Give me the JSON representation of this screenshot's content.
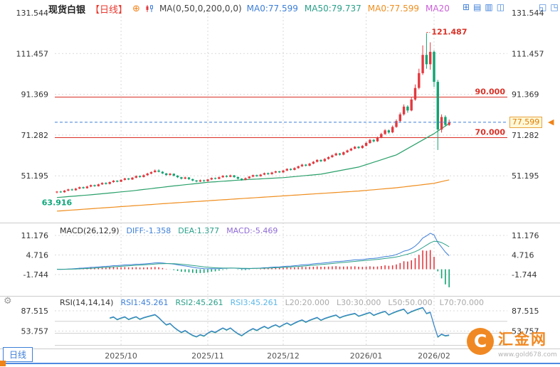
{
  "colors": {
    "up": "#e2393f",
    "down": "#12a372",
    "ma_green": "#2aa06a",
    "ma_orange": "#ef8e1f",
    "grid": "#d9d9d9",
    "separator": "#cccccc",
    "axis_text": "#333333",
    "hline_red": "#d93026",
    "price_line": "#3d7fd8",
    "price_tag_bg": "#fff8d9",
    "price_tag_border": "#e8a33d",
    "price_tag_text": "#e07b00",
    "annotation_high": "#d93026",
    "annotation_low": "#0fa87a",
    "toolbar_blue": "#3d7fd8",
    "period_red": "#e8392f",
    "brand_orange": "#f08318",
    "bottom_border": "#4f8ae0",
    "macd_hist_up": "#e2393f",
    "macd_hist_down": "#12a372",
    "diff_line": "#3d7fd8",
    "dea_line": "#2aa089",
    "rsi_line1": "#3d7fd8",
    "rsi_line2": "#2aa089"
  },
  "icons": {
    "zoom_add": "⊕",
    "settings": "⚙",
    "price_arrow": "◀",
    "window_icons": [
      {
        "name": "add-window-icon",
        "glyph": "⊞"
      },
      {
        "name": "rows-layout-icon",
        "glyph": "▤"
      },
      {
        "name": "columns-layout-icon",
        "glyph": "▥"
      },
      {
        "name": "split-layout-icon",
        "glyph": "◫"
      }
    ],
    "corner_icons": [
      {
        "name": "restore-window-icon",
        "glyph": "◱"
      },
      {
        "name": "maximize-window-icon",
        "glyph": "◳"
      }
    ]
  },
  "toolbar": {
    "symbol": "现货白银",
    "period": "【日线】",
    "ma_label": "MA(0,50,0,200,0,0)",
    "ma_values": [
      {
        "text": "MA0:77.599",
        "color": "#3d7fd8"
      },
      {
        "text": "MA50:79.737",
        "color": "#2aa089"
      },
      {
        "text": "MA0:77.599",
        "color": "#ef8e1f"
      },
      {
        "text": "MA20",
        "color": "#c95fd6"
      }
    ]
  },
  "indicators": {
    "macd": {
      "label": "MACD(26,12,9)",
      "values": [
        {
          "text": "DIFF:-1.358",
          "color": "#3d7fd8"
        },
        {
          "text": "DEA:1.377",
          "color": "#2aa089"
        },
        {
          "text": "MACD:-5.469",
          "color": "#8f6bd6"
        }
      ]
    },
    "rsi": {
      "label": "RSI(14,14,14)",
      "values": [
        {
          "text": "RSI1:45.261",
          "color": "#3d7fd8"
        },
        {
          "text": "RSI2:45.261",
          "color": "#2aa089"
        },
        {
          "text": "RSI3:45.261",
          "color": "#5bb7e8"
        },
        {
          "text": "L20:20.000",
          "color": "#aaaaaa"
        },
        {
          "text": "L30:30.000",
          "color": "#aaaaaa"
        },
        {
          "text": "L50:50.000",
          "color": "#aaaaaa"
        },
        {
          "text": "L70:70.000",
          "color": "#aaaaaa"
        }
      ]
    }
  },
  "bottom": {
    "tab": "日线"
  },
  "watermark": {
    "logo_glyph": "C",
    "name": "汇金网",
    "url": "www.gold678.com"
  },
  "chart_data": {
    "type": "candlestick",
    "title": "现货白银 日线",
    "main": {
      "y_ticks": [
        131.544,
        111.457,
        91.369,
        71.282,
        51.195
      ],
      "hlines": [
        {
          "value": 90.0,
          "label": "90.000"
        },
        {
          "value": 70.0,
          "label": "70.000"
        }
      ],
      "current_price": 77.599,
      "current_price_label": "77.599",
      "high_annotation": {
        "value": 121.487,
        "label": "121.487"
      },
      "low_annotation": {
        "value": 63.916,
        "label": "63.916"
      },
      "month_marks": [
        {
          "index": 17,
          "label": "2025/10"
        },
        {
          "index": 40,
          "label": "2025/11"
        },
        {
          "index": 60,
          "label": "2025/12"
        },
        {
          "index": 82,
          "label": "2026/01"
        },
        {
          "index": 100,
          "label": "2026/02"
        }
      ],
      "ma_green_points": {
        "indices": [
          0,
          10,
          20,
          30,
          40,
          50,
          60,
          70,
          80,
          90,
          100,
          104
        ],
        "values": [
          40.5,
          42.0,
          43.8,
          46.0,
          48.0,
          49.3,
          50.3,
          52.0,
          55.5,
          61.5,
          72.0,
          77.0
        ]
      },
      "ma_orange_points": {
        "indices": [
          0,
          10,
          20,
          30,
          40,
          50,
          60,
          70,
          80,
          90,
          100,
          104
        ],
        "values": [
          33.8,
          35.1,
          36.4,
          37.7,
          38.9,
          40.1,
          41.3,
          42.5,
          43.7,
          45.3,
          47.5,
          49.2
        ]
      },
      "columns": [
        "date",
        "open",
        "high",
        "low",
        "close"
      ],
      "candles": [
        [
          "2025-09-08",
          43.0,
          43.7,
          42.6,
          43.4
        ],
        [
          "2025-09-09",
          43.4,
          43.8,
          42.8,
          43.1
        ],
        [
          "2025-09-10",
          43.1,
          44.2,
          42.9,
          43.9
        ],
        [
          "2025-09-11",
          43.9,
          44.8,
          43.6,
          44.5
        ],
        [
          "2025-09-12",
          44.5,
          44.9,
          43.8,
          44.1
        ],
        [
          "2025-09-15",
          44.1,
          45.2,
          43.9,
          44.9
        ],
        [
          "2025-09-16",
          44.9,
          45.9,
          44.6,
          45.6
        ],
        [
          "2025-09-17",
          45.6,
          45.9,
          44.8,
          45.1
        ],
        [
          "2025-09-18",
          45.1,
          46.3,
          44.9,
          45.9
        ],
        [
          "2025-09-19",
          45.9,
          46.9,
          45.6,
          46.6
        ],
        [
          "2025-09-22",
          46.6,
          46.9,
          45.8,
          46.1
        ],
        [
          "2025-09-23",
          46.1,
          47.3,
          45.9,
          47.0
        ],
        [
          "2025-09-24",
          47.0,
          48.0,
          46.7,
          47.7
        ],
        [
          "2025-09-25",
          47.7,
          48.0,
          46.9,
          47.2
        ],
        [
          "2025-09-26",
          47.2,
          48.4,
          47.0,
          48.1
        ],
        [
          "2025-09-29",
          48.1,
          49.1,
          47.8,
          48.8
        ],
        [
          "2025-09-30",
          48.8,
          49.0,
          48.0,
          48.3
        ],
        [
          "2025-10-01",
          48.3,
          49.5,
          48.1,
          49.2
        ],
        [
          "2025-10-02",
          49.2,
          50.2,
          48.9,
          49.9
        ],
        [
          "2025-10-03",
          49.9,
          50.1,
          49.1,
          49.4
        ],
        [
          "2025-10-06",
          49.4,
          50.6,
          49.2,
          50.3
        ],
        [
          "2025-10-07",
          50.3,
          51.4,
          50.0,
          51.1
        ],
        [
          "2025-10-08",
          51.1,
          51.4,
          50.3,
          50.6
        ],
        [
          "2025-10-09",
          50.6,
          51.9,
          50.4,
          51.5
        ],
        [
          "2025-10-10",
          51.5,
          52.7,
          51.2,
          52.3
        ],
        [
          "2025-10-13",
          52.3,
          53.4,
          52.0,
          53.0
        ],
        [
          "2025-10-14",
          53.0,
          54.3,
          52.8,
          53.8
        ],
        [
          "2025-10-15",
          53.8,
          54.4,
          52.9,
          53.2
        ],
        [
          "2025-10-16",
          53.2,
          53.5,
          52.1,
          52.4
        ],
        [
          "2025-10-17",
          52.4,
          52.6,
          51.2,
          51.6
        ],
        [
          "2025-10-20",
          51.6,
          52.6,
          51.3,
          52.2
        ],
        [
          "2025-10-21",
          52.2,
          52.4,
          50.9,
          51.3
        ],
        [
          "2025-10-22",
          51.3,
          51.5,
          50.1,
          50.5
        ],
        [
          "2025-10-23",
          50.5,
          50.7,
          49.4,
          49.8
        ],
        [
          "2025-10-24",
          49.8,
          50.8,
          49.5,
          50.4
        ],
        [
          "2025-10-27",
          50.4,
          50.6,
          49.2,
          49.6
        ],
        [
          "2025-10-28",
          49.6,
          49.8,
          48.5,
          48.9
        ],
        [
          "2025-10-29",
          48.9,
          49.1,
          48.0,
          48.4
        ],
        [
          "2025-10-30",
          48.4,
          49.4,
          48.1,
          49.0
        ],
        [
          "2025-10-31",
          49.0,
          49.3,
          48.2,
          48.6
        ],
        [
          "2025-11-03",
          48.6,
          49.7,
          48.3,
          49.4
        ],
        [
          "2025-11-04",
          49.4,
          50.4,
          49.1,
          50.1
        ],
        [
          "2025-11-05",
          50.1,
          50.4,
          49.4,
          49.7
        ],
        [
          "2025-11-06",
          49.7,
          50.8,
          49.5,
          50.5
        ],
        [
          "2025-11-07",
          50.5,
          51.5,
          50.2,
          51.2
        ],
        [
          "2025-11-10",
          51.2,
          51.5,
          50.4,
          50.7
        ],
        [
          "2025-11-11",
          50.7,
          51.8,
          50.5,
          51.4
        ],
        [
          "2025-11-12",
          51.4,
          51.6,
          50.2,
          50.6
        ],
        [
          "2025-11-13",
          50.6,
          50.8,
          49.4,
          49.8
        ],
        [
          "2025-11-14",
          49.8,
          50.0,
          48.8,
          49.2
        ],
        [
          "2025-11-17",
          49.2,
          50.4,
          49.0,
          50.0
        ],
        [
          "2025-11-18",
          50.0,
          51.1,
          49.8,
          50.8
        ],
        [
          "2025-11-19",
          50.8,
          51.8,
          50.5,
          51.5
        ],
        [
          "2025-11-20",
          51.5,
          51.8,
          50.7,
          51.0
        ],
        [
          "2025-11-21",
          51.0,
          52.1,
          50.8,
          51.8
        ],
        [
          "2025-11-24",
          51.8,
          52.8,
          51.5,
          52.5
        ],
        [
          "2025-11-25",
          52.5,
          52.8,
          51.7,
          52.0
        ],
        [
          "2025-11-26",
          52.0,
          53.2,
          51.8,
          52.8
        ],
        [
          "2025-11-27",
          52.8,
          53.7,
          52.5,
          53.4
        ],
        [
          "2025-11-28",
          53.4,
          53.6,
          52.6,
          52.9
        ],
        [
          "2025-12-01",
          52.9,
          54.1,
          52.7,
          53.8
        ],
        [
          "2025-12-02",
          53.8,
          54.9,
          53.5,
          54.6
        ],
        [
          "2025-12-03",
          54.6,
          54.9,
          53.8,
          54.1
        ],
        [
          "2025-12-04",
          54.1,
          55.4,
          53.9,
          55.0
        ],
        [
          "2025-12-05",
          55.0,
          56.2,
          54.7,
          55.9
        ],
        [
          "2025-12-08",
          55.9,
          57.1,
          55.6,
          56.7
        ],
        [
          "2025-12-09",
          56.7,
          57.0,
          55.8,
          56.2
        ],
        [
          "2025-12-10",
          56.2,
          57.6,
          55.9,
          57.2
        ],
        [
          "2025-12-11",
          57.2,
          58.5,
          56.9,
          58.1
        ],
        [
          "2025-12-12",
          58.1,
          59.4,
          57.8,
          59.0
        ],
        [
          "2025-12-15",
          59.0,
          59.3,
          58.0,
          58.4
        ],
        [
          "2025-12-16",
          58.4,
          59.9,
          58.1,
          59.5
        ],
        [
          "2025-12-17",
          59.5,
          60.8,
          59.2,
          60.4
        ],
        [
          "2025-12-18",
          60.4,
          61.7,
          60.1,
          61.3
        ],
        [
          "2025-12-19",
          61.3,
          62.6,
          61.0,
          62.2
        ],
        [
          "2025-12-22",
          62.2,
          62.5,
          61.2,
          61.6
        ],
        [
          "2025-12-23",
          61.6,
          63.2,
          61.3,
          62.8
        ],
        [
          "2025-12-24",
          62.8,
          64.1,
          62.5,
          63.7
        ],
        [
          "2025-12-26",
          63.7,
          65.0,
          63.4,
          64.6
        ],
        [
          "2025-12-29",
          64.6,
          65.9,
          64.3,
          65.5
        ],
        [
          "2025-12-30",
          65.5,
          65.8,
          64.5,
          64.9
        ],
        [
          "2025-12-31",
          64.9,
          66.4,
          64.6,
          66.0
        ],
        [
          "2026-01-02",
          66.0,
          67.9,
          65.7,
          67.4
        ],
        [
          "2026-01-05",
          67.4,
          69.4,
          67.0,
          68.9
        ],
        [
          "2026-01-06",
          68.9,
          69.3,
          67.7,
          68.2
        ],
        [
          "2026-01-07",
          68.2,
          70.5,
          67.9,
          70.0
        ],
        [
          "2026-01-08",
          70.0,
          72.4,
          69.7,
          71.8
        ],
        [
          "2026-01-09",
          71.8,
          74.2,
          71.4,
          73.6
        ],
        [
          "2026-01-12",
          73.6,
          74.0,
          72.0,
          72.6
        ],
        [
          "2026-01-13",
          72.6,
          76.0,
          72.2,
          75.3
        ],
        [
          "2026-01-14",
          75.3,
          79.0,
          74.9,
          78.2
        ],
        [
          "2026-01-15",
          78.2,
          82.4,
          77.8,
          81.5
        ],
        [
          "2026-01-16",
          81.5,
          86.4,
          80.9,
          85.3
        ],
        [
          "2026-01-19",
          85.3,
          86.0,
          82.3,
          83.4
        ],
        [
          "2026-01-20",
          83.4,
          90.0,
          83.0,
          88.8
        ],
        [
          "2026-01-21",
          88.8,
          96.2,
          88.2,
          94.5
        ],
        [
          "2026-01-22",
          94.5,
          104.0,
          93.8,
          101.8
        ],
        [
          "2026-01-23",
          101.8,
          115.5,
          100.9,
          110.8
        ],
        [
          "2026-01-26",
          110.8,
          121.487,
          104.0,
          106.2
        ],
        [
          "2026-01-27",
          106.2,
          117.0,
          103.5,
          112.3
        ],
        [
          "2026-02-02",
          112.3,
          113.0,
          95.0,
          97.5
        ],
        [
          "2026-02-03",
          97.5,
          98.5,
          63.916,
          74.0
        ],
        [
          "2026-02-04",
          74.0,
          81.5,
          72.5,
          80.2
        ],
        [
          "2026-02-05",
          80.2,
          81.0,
          75.5,
          76.3
        ],
        [
          "2026-02-06",
          76.3,
          78.9,
          75.8,
          77.599
        ]
      ]
    },
    "macd": {
      "params": [
        26,
        12,
        9
      ],
      "y_ticks": [
        11.176,
        4.716,
        -1.744
      ],
      "diff": -1.358,
      "dea": 1.377,
      "macd": -5.469
    },
    "rsi": {
      "params": [
        14,
        14,
        14
      ],
      "y_ticks": [
        87.515,
        53.757
      ],
      "levels": [
        20,
        30,
        50,
        70
      ],
      "rsi1": 45.261,
      "rsi2": 45.261,
      "rsi3": 45.261
    }
  }
}
